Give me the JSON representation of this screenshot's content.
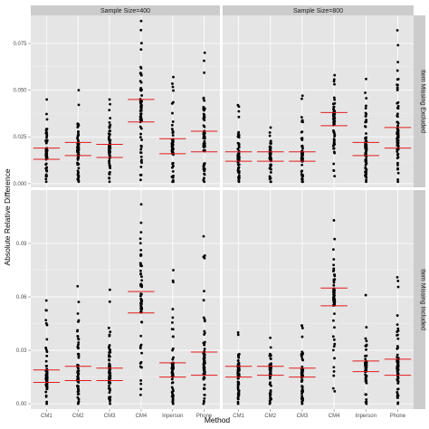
{
  "chart_data": {
    "type": "scatter",
    "xlabel": "Method",
    "ylabel": "Absolute Relative Difference",
    "categories": [
      "CM1",
      "CM2",
      "CM3",
      "CM4",
      "Inperson",
      "Phone"
    ],
    "facet_columns": [
      "Sample Size=400",
      "Sample Size=800"
    ],
    "facet_rows": [
      "Item Missing Excluded",
      "Item Missing Included"
    ],
    "grid": true,
    "colors": {
      "panel_bg": "#e5e5e5",
      "strip_bg": "#cccccc",
      "grid": "#ffffff",
      "points": "#000000",
      "lines": "#e41a1c"
    },
    "rows": [
      {
        "label": "Item Missing Excluded",
        "ylim": [
          -0.002,
          0.09
        ],
        "yticks": [
          0.0,
          0.025,
          0.05,
          0.075
        ],
        "ytick_labels": [
          "0.000",
          "0.025",
          "0.050",
          "0.075"
        ],
        "panels": [
          {
            "column": "Sample Size=400",
            "series": [
              {
                "category": "CM1",
                "min": 0.001,
                "max": 0.045,
                "q1": 0.013,
                "q3": 0.019
              },
              {
                "category": "CM2",
                "min": 0.001,
                "max": 0.05,
                "q1": 0.015,
                "q3": 0.022
              },
              {
                "category": "CM3",
                "min": 0.001,
                "max": 0.045,
                "q1": 0.014,
                "q3": 0.021
              },
              {
                "category": "CM4",
                "min": 0.002,
                "max": 0.087,
                "q1": 0.033,
                "q3": 0.045
              },
              {
                "category": "Inperson",
                "min": 0.001,
                "max": 0.057,
                "q1": 0.016,
                "q3": 0.024
              },
              {
                "category": "Phone",
                "min": 0.001,
                "max": 0.07,
                "q1": 0.017,
                "q3": 0.028
              }
            ]
          },
          {
            "column": "Sample Size=800",
            "series": [
              {
                "category": "CM1",
                "min": 0.001,
                "max": 0.042,
                "q1": 0.012,
                "q3": 0.017
              },
              {
                "category": "CM2",
                "min": 0.001,
                "max": 0.03,
                "q1": 0.012,
                "q3": 0.017
              },
              {
                "category": "CM3",
                "min": 0.001,
                "max": 0.047,
                "q1": 0.012,
                "q3": 0.017
              },
              {
                "category": "CM4",
                "min": 0.004,
                "max": 0.058,
                "q1": 0.031,
                "q3": 0.038
              },
              {
                "category": "Inperson",
                "min": 0.001,
                "max": 0.056,
                "q1": 0.015,
                "q3": 0.022
              },
              {
                "category": "Phone",
                "min": 0.001,
                "max": 0.082,
                "q1": 0.019,
                "q3": 0.03
              }
            ]
          }
        ]
      },
      {
        "label": "Item Missing Included",
        "ylim": [
          -0.003,
          0.12
        ],
        "yticks": [
          0.0,
          0.03,
          0.06,
          0.09
        ],
        "ytick_labels": [
          "0.00",
          "0.03",
          "0.06",
          "0.09"
        ],
        "panels": [
          {
            "column": "Sample Size=400",
            "series": [
              {
                "category": "CM1",
                "min": 0.0,
                "max": 0.058,
                "q1": 0.012,
                "q3": 0.019
              },
              {
                "category": "CM2",
                "min": 0.0,
                "max": 0.066,
                "q1": 0.013,
                "q3": 0.021
              },
              {
                "category": "CM3",
                "min": 0.0,
                "max": 0.064,
                "q1": 0.013,
                "q3": 0.02
              },
              {
                "category": "CM4",
                "min": 0.005,
                "max": 0.112,
                "q1": 0.051,
                "q3": 0.063
              },
              {
                "category": "Inperson",
                "min": 0.0,
                "max": 0.075,
                "q1": 0.015,
                "q3": 0.023
              },
              {
                "category": "Phone",
                "min": 0.0,
                "max": 0.094,
                "q1": 0.016,
                "q3": 0.029
              }
            ]
          },
          {
            "column": "Sample Size=800",
            "series": [
              {
                "category": "CM1",
                "min": 0.0,
                "max": 0.04,
                "q1": 0.015,
                "q3": 0.021
              },
              {
                "category": "CM2",
                "min": 0.0,
                "max": 0.037,
                "q1": 0.016,
                "q3": 0.021
              },
              {
                "category": "CM3",
                "min": 0.0,
                "max": 0.044,
                "q1": 0.015,
                "q3": 0.02
              },
              {
                "category": "CM4",
                "min": 0.007,
                "max": 0.103,
                "q1": 0.055,
                "q3": 0.065
              },
              {
                "category": "Inperson",
                "min": 0.0,
                "max": 0.061,
                "q1": 0.018,
                "q3": 0.024
              },
              {
                "category": "Phone",
                "min": 0.0,
                "max": 0.071,
                "q1": 0.016,
                "q3": 0.025
              }
            ]
          }
        ]
      }
    ]
  }
}
